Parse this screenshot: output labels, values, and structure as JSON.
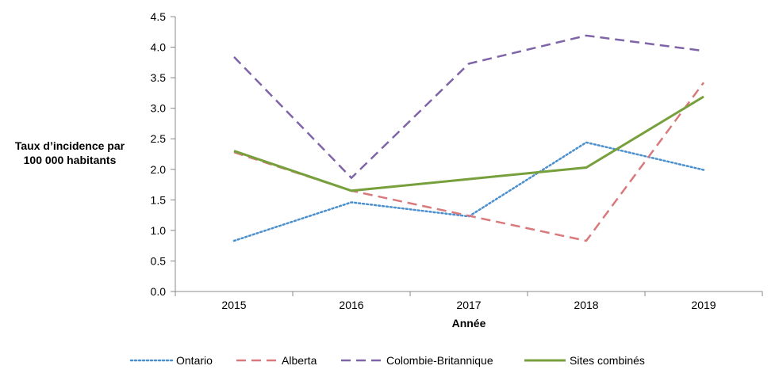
{
  "chart_data": {
    "type": "line",
    "title": "",
    "xlabel": "Année",
    "ylabel_lines": [
      "Taux d’incidence par",
      "100 000 habitants"
    ],
    "categories": [
      "2015",
      "2016",
      "2017",
      "2018",
      "2019"
    ],
    "ylim": [
      0,
      4.5
    ],
    "ytick_step": 0.5,
    "ytick_labels": [
      "0.0",
      "0.5",
      "1.0",
      "1.5",
      "2.0",
      "2.5",
      "3.0",
      "3.5",
      "4.0",
      "4.5"
    ],
    "grid": false,
    "legend_position": "bottom",
    "series": [
      {
        "name": "Ontario",
        "values": [
          0.83,
          1.46,
          1.23,
          2.44,
          1.99
        ],
        "color": "#4a8fce",
        "dash": "dotted"
      },
      {
        "name": "Alberta",
        "values": [
          2.28,
          1.65,
          1.24,
          0.83,
          3.42
        ],
        "color": "#d9797c",
        "dash": "dashed"
      },
      {
        "name": "Colombie-Britannique",
        "values": [
          3.84,
          1.86,
          3.73,
          4.19,
          3.94
        ],
        "color": "#7f64a8",
        "dash": "dashed"
      },
      {
        "name": "Sites combinés",
        "values": [
          2.3,
          1.65,
          1.84,
          2.03,
          3.19
        ],
        "color": "#77a03d",
        "dash": "solid"
      }
    ]
  }
}
